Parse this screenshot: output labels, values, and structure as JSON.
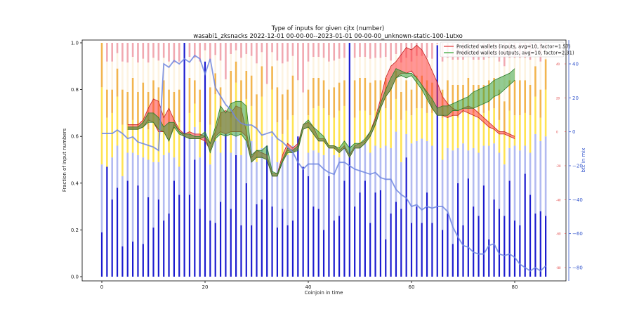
{
  "chart_data": {
    "type": "bar",
    "title": "Type of inputs for given cjtx (number)",
    "subtitle": "wasabi1_zksnacks 2022-12-01 00-00-00--2023-01-01 00-00-00_unknown-static-100-1utxo",
    "xlabel": "Coinjoin in time",
    "ylabel": "Fraction of input numbers",
    "y2label": "btc in mix",
    "xlim": [
      -4,
      90
    ],
    "ylim": [
      0,
      1
    ],
    "y2lim": [
      -88,
      52
    ],
    "y3lim": [
      -88,
      52
    ],
    "xticks": [
      0,
      20,
      40,
      60,
      80
    ],
    "yticks": [
      "0.0",
      "0.2",
      "0.4",
      "0.6",
      "0.8",
      "1.0"
    ],
    "y2ticks": [
      -80,
      -60,
      -40,
      -20,
      0,
      20,
      40
    ],
    "y3ticks": [
      -80,
      -60,
      -40,
      -20,
      0,
      20,
      40
    ],
    "y3ticklabels": [
      "-80",
      "-60",
      "-40",
      "-20",
      "0",
      "20",
      "40"
    ],
    "legend": [
      {
        "label": "Predicted wallets (inputs, avg=10, factor=1.57)",
        "color": "#e03030"
      },
      {
        "label": "Predicted wallets (outputs, avg=10, factor=2.31)",
        "color": "#2ca02c"
      }
    ],
    "stack_colors": [
      "#1010cc",
      "#aab2f0",
      "#ffe040",
      "#f0a830",
      "#fdf1dc",
      "#f0a0a8"
    ],
    "stack_fractions": [
      [
        0.19,
        0.29,
        0.33,
        0.19
      ],
      [
        0.47,
        0.0,
        0.21,
        0.12
      ],
      [
        0.33,
        0.18,
        0.19,
        0.1
      ],
      [
        0.38,
        0.18,
        0.21,
        0.12
      ],
      [
        0.13,
        0.3,
        0.22,
        0.15
      ],
      [
        0.41,
        0.12,
        0.12,
        0.14
      ],
      [
        0.15,
        0.38,
        0.14,
        0.18
      ],
      [
        0.39,
        0.13,
        0.12,
        0.15
      ],
      [
        0.14,
        0.37,
        0.16,
        0.16
      ],
      [
        0.34,
        0.16,
        0.13,
        0.16
      ],
      [
        0.21,
        0.28,
        0.2,
        0.15
      ],
      [
        0.33,
        0.16,
        0.16,
        0.16
      ],
      [
        0.24,
        0.28,
        0.17,
        0.15
      ],
      [
        0.27,
        0.26,
        0.12,
        0.15
      ],
      [
        0.41,
        0.1,
        0.12,
        0.16
      ],
      [
        0.35,
        0.12,
        0.19,
        0.14
      ],
      [
        1.0,
        0.0,
        0.0,
        0.0
      ],
      [
        0.35,
        0.25,
        0.1,
        0.15
      ],
      [
        0.5,
        0.14,
        0.1,
        0.1
      ],
      [
        0.29,
        0.22,
        0.15,
        0.14
      ],
      [
        0.92,
        0.0,
        0.0,
        0.0
      ],
      [
        0.24,
        0.24,
        0.17,
        0.16
      ],
      [
        0.23,
        0.35,
        0.2,
        0.09
      ],
      [
        0.32,
        0.21,
        0.11,
        0.17
      ],
      [
        0.61,
        0.0,
        0.0,
        0.0
      ],
      [
        0.29,
        0.24,
        0.15,
        0.2
      ],
      [
        0.52,
        0.15,
        0.16,
        0.09
      ],
      [
        0.22,
        0.3,
        0.14,
        0.18
      ],
      [
        0.4,
        0.18,
        0.18,
        0.12
      ],
      [
        0.22,
        0.36,
        0.15,
        0.13
      ],
      [
        0.31,
        0.18,
        0.14,
        0.15
      ],
      [
        0.33,
        0.22,
        0.22,
        0.13
      ],
      [
        0.56,
        0.0,
        0.0,
        0.0
      ],
      [
        0.3,
        0.3,
        0.2,
        0.1
      ],
      [
        0.21,
        0.28,
        0.17,
        0.15
      ],
      [
        0.29,
        0.2,
        0.12,
        0.17
      ],
      [
        0.22,
        0.3,
        0.15,
        0.13
      ],
      [
        0.24,
        0.32,
        0.13,
        0.17
      ],
      [
        0.6,
        0.0,
        0.0,
        0.0
      ],
      [
        0.47,
        0.0,
        0.0,
        0.0
      ],
      [
        0.43,
        0.1,
        0.16,
        0.11
      ],
      [
        0.3,
        0.24,
        0.18,
        0.13
      ],
      [
        0.29,
        0.24,
        0.2,
        0.12
      ],
      [
        0.2,
        0.32,
        0.2,
        0.12
      ],
      [
        0.43,
        0.12,
        0.14,
        0.11
      ],
      [
        0.24,
        0.28,
        0.16,
        0.13
      ],
      [
        0.26,
        0.25,
        0.2,
        0.12
      ],
      [
        0.41,
        0.14,
        0.18,
        0.11
      ],
      [
        1.0,
        0.0,
        0.0,
        0.0
      ],
      [
        0.3,
        0.26,
        0.12,
        0.16
      ],
      [
        0.36,
        0.2,
        0.15,
        0.14
      ],
      [
        0.41,
        0.16,
        0.14,
        0.14
      ],
      [
        0.23,
        0.3,
        0.16,
        0.14
      ],
      [
        0.36,
        0.2,
        0.15,
        0.13
      ],
      [
        0.37,
        0.18,
        0.17,
        0.12
      ],
      [
        0.16,
        0.4,
        0.16,
        0.13
      ],
      [
        0.27,
        0.28,
        0.12,
        0.14
      ],
      [
        0.32,
        0.3,
        0.14,
        0.12
      ],
      [
        0.29,
        0.2,
        0.18,
        0.12
      ],
      [
        0.51,
        0.1,
        0.1,
        0.13
      ],
      [
        0.23,
        0.34,
        0.12,
        0.11
      ],
      [
        0.3,
        0.28,
        0.14,
        0.14
      ],
      [
        0.23,
        0.36,
        0.13,
        0.14
      ],
      [
        0.36,
        0.22,
        0.12,
        0.14
      ],
      [
        0.23,
        0.33,
        0.14,
        0.13
      ],
      [
        0.99,
        0.0,
        0.0,
        0.0
      ],
      [
        0.2,
        0.3,
        0.18,
        0.12
      ],
      [
        0.27,
        0.28,
        0.17,
        0.12
      ],
      [
        0.14,
        0.4,
        0.15,
        0.13
      ],
      [
        0.4,
        0.15,
        0.13,
        0.14
      ],
      [
        0.22,
        0.35,
        0.13,
        0.12
      ],
      [
        0.42,
        0.12,
        0.18,
        0.13
      ],
      [
        0.3,
        0.25,
        0.15,
        0.12
      ],
      [
        0.26,
        0.27,
        0.17,
        0.12
      ],
      [
        0.39,
        0.17,
        0.14,
        0.12
      ],
      [
        0.16,
        0.4,
        0.15,
        0.13
      ],
      [
        0.33,
        0.24,
        0.15,
        0.13
      ],
      [
        0.29,
        0.24,
        0.14,
        0.13
      ],
      [
        0.26,
        0.22,
        0.13,
        0.14
      ],
      [
        0.41,
        0.14,
        0.16,
        0.13
      ],
      [
        0.24,
        0.32,
        0.13,
        0.15
      ],
      [
        0.22,
        0.32,
        0.15,
        0.15
      ],
      [
        0.44,
        0.12,
        0.14,
        0.14
      ],
      [
        0.35,
        0.18,
        0.16,
        0.13
      ],
      [
        0.27,
        0.34,
        0.16,
        0.13
      ],
      [
        0.28,
        0.3,
        0.1,
        0.12
      ],
      [
        0.26,
        0.34,
        0.2,
        0.13
      ]
    ],
    "band_x": [
      5,
      6,
      7,
      8,
      9,
      10,
      11,
      12,
      13,
      14,
      15,
      16,
      17,
      18,
      19,
      20,
      21,
      22,
      23,
      24,
      25,
      26,
      27,
      28,
      29,
      30,
      31,
      32,
      33,
      34,
      35,
      36,
      37,
      38,
      39,
      40,
      41,
      42,
      43,
      44,
      45,
      46,
      47,
      48,
      49,
      50,
      51,
      52,
      53,
      54,
      55,
      56,
      57,
      58,
      59,
      60,
      61,
      62,
      63,
      64,
      65,
      66,
      67,
      68,
      69,
      70,
      71,
      72,
      73,
      74,
      75,
      76,
      77,
      78,
      79,
      80
    ],
    "inputs_upper": [
      0.65,
      0.65,
      0.65,
      0.67,
      0.72,
      0.76,
      0.75,
      0.68,
      0.72,
      0.67,
      0.63,
      0.61,
      0.62,
      0.61,
      0.61,
      0.6,
      0.57,
      0.62,
      0.7,
      0.71,
      0.7,
      0.73,
      0.72,
      0.62,
      0.51,
      0.54,
      0.53,
      0.52,
      0.44,
      0.44,
      0.52,
      0.57,
      0.55,
      0.57,
      0.65,
      0.66,
      0.64,
      0.59,
      0.59,
      0.56,
      0.56,
      0.54,
      0.56,
      0.52,
      0.56,
      0.57,
      0.58,
      0.62,
      0.68,
      0.76,
      0.85,
      0.9,
      0.92,
      0.95,
      0.98,
      0.97,
      0.99,
      0.97,
      0.93,
      0.88,
      0.83,
      0.77,
      0.74,
      0.72,
      0.71,
      0.72,
      0.73,
      0.72,
      0.7,
      0.68,
      0.66,
      0.64,
      0.62,
      0.62,
      0.61,
      0.6
    ],
    "inputs_lower": [
      0.63,
      0.63,
      0.63,
      0.64,
      0.67,
      0.66,
      0.62,
      0.62,
      0.58,
      0.65,
      0.62,
      0.6,
      0.59,
      0.59,
      0.59,
      0.58,
      0.54,
      0.6,
      0.62,
      0.61,
      0.62,
      0.62,
      0.62,
      0.6,
      0.49,
      0.51,
      0.51,
      0.5,
      0.43,
      0.43,
      0.49,
      0.54,
      0.53,
      0.55,
      0.63,
      0.64,
      0.61,
      0.58,
      0.58,
      0.55,
      0.55,
      0.53,
      0.55,
      0.51,
      0.55,
      0.55,
      0.57,
      0.6,
      0.65,
      0.72,
      0.77,
      0.8,
      0.85,
      0.87,
      0.87,
      0.88,
      0.85,
      0.82,
      0.78,
      0.72,
      0.69,
      0.69,
      0.68,
      0.69,
      0.69,
      0.71,
      0.7,
      0.69,
      0.68,
      0.66,
      0.64,
      0.63,
      0.61,
      0.61,
      0.6,
      0.59
    ],
    "outputs_upper": [
      0.64,
      0.64,
      0.64,
      0.66,
      0.7,
      0.7,
      0.68,
      0.64,
      0.66,
      0.66,
      0.62,
      0.61,
      0.61,
      0.6,
      0.6,
      0.62,
      0.57,
      0.64,
      0.73,
      0.7,
      0.74,
      0.75,
      0.75,
      0.73,
      0.52,
      0.54,
      0.54,
      0.56,
      0.45,
      0.44,
      0.5,
      0.55,
      0.54,
      0.56,
      0.65,
      0.67,
      0.64,
      0.62,
      0.6,
      0.56,
      0.56,
      0.55,
      0.58,
      0.55,
      0.57,
      0.57,
      0.59,
      0.62,
      0.67,
      0.74,
      0.8,
      0.85,
      0.89,
      0.88,
      0.87,
      0.87,
      0.85,
      0.82,
      0.79,
      0.76,
      0.72,
      0.73,
      0.73,
      0.74,
      0.75,
      0.76,
      0.77,
      0.79,
      0.8,
      0.81,
      0.82,
      0.84,
      0.85,
      0.86,
      0.87,
      0.89
    ],
    "outputs_lower": [
      0.63,
      0.63,
      0.63,
      0.64,
      0.66,
      0.66,
      0.63,
      0.62,
      0.58,
      0.64,
      0.61,
      0.6,
      0.59,
      0.59,
      0.59,
      0.6,
      0.53,
      0.59,
      0.61,
      0.6,
      0.61,
      0.6,
      0.61,
      0.58,
      0.49,
      0.51,
      0.51,
      0.5,
      0.43,
      0.43,
      0.49,
      0.53,
      0.53,
      0.54,
      0.63,
      0.64,
      0.61,
      0.58,
      0.58,
      0.55,
      0.55,
      0.53,
      0.55,
      0.51,
      0.55,
      0.55,
      0.57,
      0.6,
      0.65,
      0.72,
      0.77,
      0.8,
      0.85,
      0.86,
      0.85,
      0.86,
      0.83,
      0.8,
      0.76,
      0.72,
      0.69,
      0.69,
      0.69,
      0.71,
      0.71,
      0.72,
      0.72,
      0.72,
      0.73,
      0.74,
      0.75,
      0.77,
      0.78,
      0.8,
      0.82,
      0.84
    ],
    "btc_x": [
      0,
      1,
      2,
      3,
      4,
      5,
      6,
      7,
      8,
      9,
      10,
      11,
      12,
      13,
      14,
      15,
      16,
      17,
      18,
      19,
      20,
      21,
      22,
      23,
      24,
      25,
      26,
      27,
      28,
      29,
      30,
      31,
      32,
      33,
      34,
      35,
      36,
      37,
      38,
      39,
      40,
      41,
      42,
      43,
      44,
      45,
      46,
      47,
      48,
      49,
      50,
      51,
      52,
      53,
      54,
      55,
      56,
      57,
      58,
      59,
      60,
      61,
      62,
      63,
      64,
      65,
      66,
      67,
      68,
      69,
      70,
      71,
      72,
      73,
      74,
      75,
      76,
      77,
      78,
      79,
      80,
      81,
      82,
      83,
      84,
      85,
      86
    ],
    "btc_values": [
      -1,
      -1,
      -1,
      1,
      -1,
      -4,
      -3,
      -6,
      -7,
      -8,
      -9,
      -11,
      40,
      38,
      42,
      40,
      43,
      41,
      45,
      43,
      34,
      43,
      26,
      21,
      16,
      13,
      8,
      5,
      4,
      4,
      2,
      -2,
      -1,
      0,
      -4,
      -6,
      -9,
      -12,
      -18,
      -22,
      -19,
      -19,
      -19,
      -22,
      -24,
      -25,
      -18,
      -18,
      -20,
      -22,
      -23,
      -24,
      -25,
      -24,
      -27,
      -28,
      -28,
      -34,
      -37,
      -39,
      -44,
      -43,
      -46,
      -44,
      -45,
      -44,
      -44,
      -47,
      -56,
      -62,
      -67,
      -68,
      -71,
      -72,
      -72,
      -67,
      -66,
      -72,
      -73,
      -72,
      -74,
      -78,
      -80,
      -82,
      -80,
      -82,
      -79
    ]
  }
}
